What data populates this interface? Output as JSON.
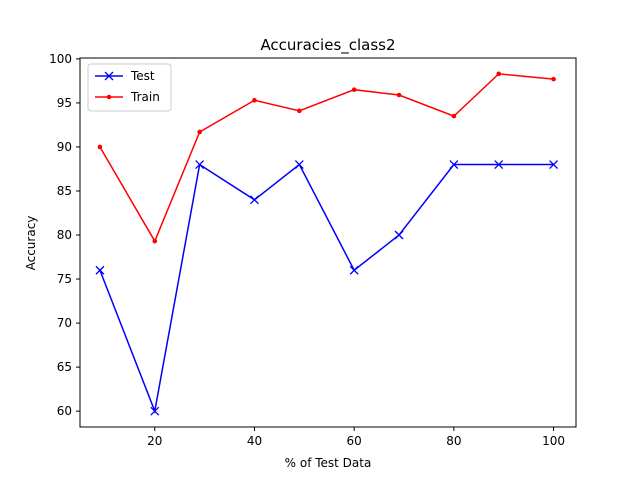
{
  "chart_data": {
    "type": "line",
    "title": "Accuracies_class2",
    "xlabel": "% of Test Data",
    "ylabel": "Accuracy",
    "xlim": [
      5,
      104.5
    ],
    "ylim": [
      58.2,
      100.1
    ],
    "xticks": [
      20,
      40,
      60,
      80,
      100
    ],
    "yticks": [
      60,
      65,
      70,
      75,
      80,
      85,
      90,
      95,
      100
    ],
    "grid": false,
    "legend_position": "top-left",
    "series": [
      {
        "name": "Test",
        "color": "#0000ff",
        "marker": "x",
        "x": [
          9,
          20,
          29,
          40,
          49,
          60,
          69,
          80,
          89,
          100
        ],
        "y": [
          76,
          60,
          88,
          84,
          88,
          76,
          80,
          88,
          88,
          88
        ]
      },
      {
        "name": "Train",
        "color": "#ff0000",
        "marker": "dot",
        "x": [
          9,
          20,
          29,
          40,
          49,
          60,
          69,
          80,
          89,
          100
        ],
        "y": [
          90,
          79.3,
          91.7,
          95.3,
          94.1,
          96.5,
          95.9,
          93.5,
          98.3,
          97.7
        ]
      }
    ]
  }
}
